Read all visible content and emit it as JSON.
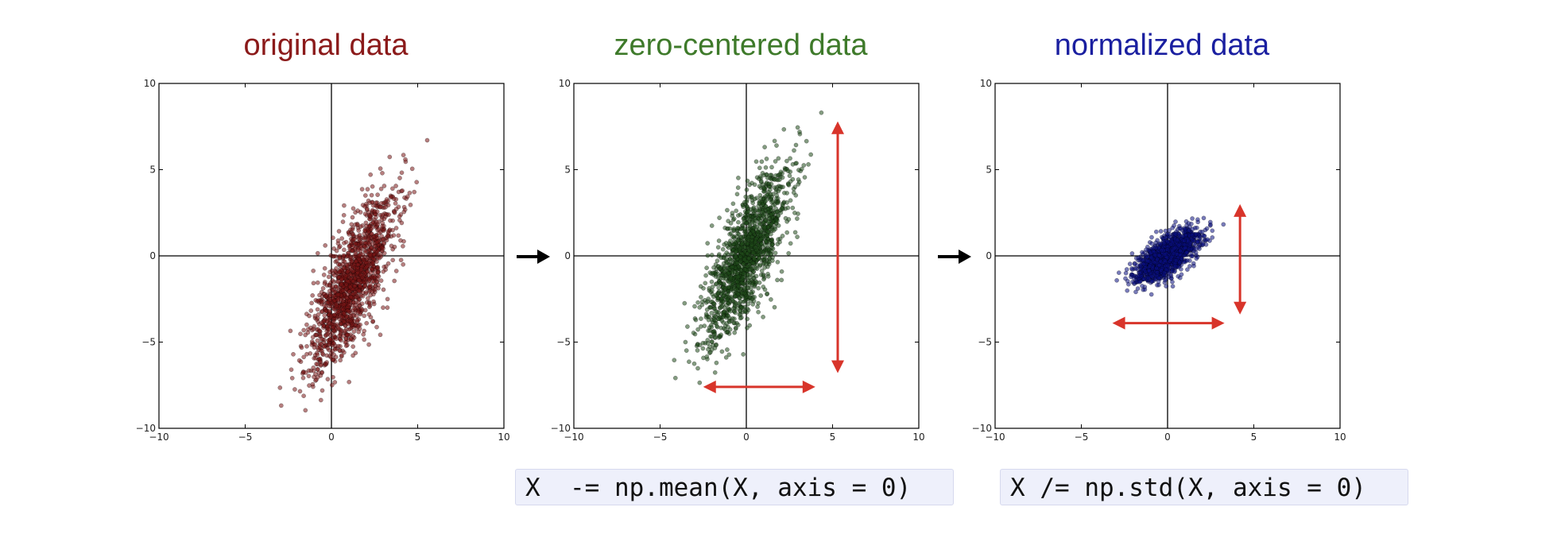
{
  "panels": [
    {
      "title": "original data",
      "title_color": "#8b1a1a",
      "point_color": "#7a1515"
    },
    {
      "title": "zero-centered data",
      "title_color": "#3e7a2a",
      "point_color": "#1f4a1a"
    },
    {
      "title": "normalized data",
      "title_color": "#1a1fa0",
      "point_color": "#0a0f80"
    }
  ],
  "code": {
    "mean_line": "X  -= np.mean(X, axis = 0)",
    "std_line": "X /= np.std(X, axis = 0)"
  },
  "arrow_color": "#d8342a",
  "chart_data": [
    {
      "type": "scatter",
      "title": "original data",
      "xlim": [
        -10,
        10
      ],
      "ylim": [
        -10,
        10
      ],
      "xticks": [
        -10,
        -5,
        0,
        5,
        10
      ],
      "yticks": [
        -10,
        -5,
        0,
        5,
        10
      ],
      "center": [
        1.2,
        -1.6
      ],
      "spread_major": 6.6,
      "spread_minor": 0.75,
      "angle_deg": 68,
      "axis_lines": true
    },
    {
      "type": "scatter",
      "title": "zero-centered data",
      "xlim": [
        -10,
        10
      ],
      "ylim": [
        -10,
        10
      ],
      "xticks": [
        -10,
        -5,
        0,
        5,
        10
      ],
      "yticks": [
        -10,
        -5,
        0,
        5,
        10
      ],
      "center": [
        0,
        0
      ],
      "spread_major": 6.6,
      "spread_minor": 0.75,
      "angle_deg": 68,
      "axis_lines": true,
      "range_arrows": {
        "vertical": [
          5.3,
          -6.8,
          7.8
        ],
        "horizontal": [
          -7.6,
          -2.5,
          4.0
        ]
      }
    },
    {
      "type": "scatter",
      "title": "normalized data",
      "xlim": [
        -10,
        10
      ],
      "ylim": [
        -10,
        10
      ],
      "xticks": [
        -10,
        -5,
        0,
        5,
        10
      ],
      "yticks": [
        -10,
        -5,
        0,
        5,
        10
      ],
      "center": [
        0,
        0
      ],
      "spread_major": 2.6,
      "spread_minor": 0.45,
      "angle_deg": 38,
      "axis_lines": true,
      "range_arrows": {
        "vertical": [
          4.2,
          -3.4,
          3.0
        ],
        "horizontal": [
          -3.9,
          -3.2,
          3.3
        ]
      }
    }
  ]
}
